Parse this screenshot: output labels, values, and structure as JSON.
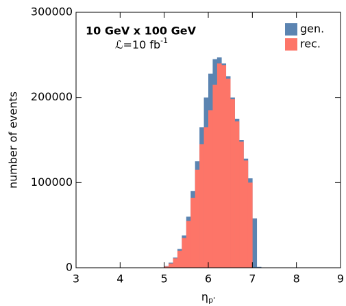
{
  "chart_data": {
    "type": "histogram",
    "annotation": "10 GeV x 100 GeV",
    "lumi": {
      "text": "ℒ=10 fb",
      "sup": "-1"
    },
    "xlabel": "η",
    "xlabel_sub": "p'",
    "ylabel": "number of events",
    "bins": [
      4.9,
      5.0,
      5.1,
      5.2,
      5.3,
      5.4,
      5.5,
      5.6,
      5.7,
      5.8,
      5.9,
      6.0,
      6.1,
      6.2,
      6.3,
      6.4,
      6.5,
      6.6,
      6.7,
      6.8,
      6.9,
      7.0,
      7.1,
      7.2
    ],
    "series": [
      {
        "name": "gen.",
        "color": "#5b84b1",
        "values": [
          0,
          2000,
          6000,
          12000,
          22000,
          38000,
          60000,
          90000,
          125000,
          165000,
          200000,
          228000,
          245000,
          247000,
          240000,
          225000,
          200000,
          175000,
          150000,
          128000,
          105000,
          58000,
          1000
        ]
      },
      {
        "name": "rec.",
        "color": "#fd7568",
        "values": [
          0,
          1500,
          5000,
          11000,
          20000,
          35000,
          55000,
          82000,
          115000,
          145000,
          165000,
          185000,
          215000,
          240000,
          238000,
          222000,
          198000,
          172000,
          148000,
          126000,
          100000,
          0,
          0
        ]
      }
    ],
    "xlim": [
      3,
      9
    ],
    "xticks": [
      3,
      4,
      5,
      6,
      7,
      8,
      9
    ],
    "ylim": [
      0,
      300000
    ],
    "yticks": [
      0,
      100000,
      200000,
      300000
    ],
    "legend": "upper right"
  }
}
